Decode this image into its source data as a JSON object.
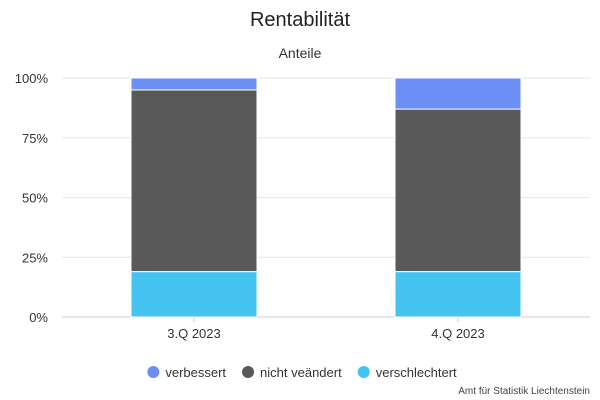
{
  "title": "Rentabilität",
  "subtitle": "Anteile",
  "credit": "Amt für Statistik Liechtenstein",
  "chart_data": {
    "type": "bar",
    "stacked": "percent",
    "categories": [
      "3.Q 2023",
      "4.Q 2023"
    ],
    "yticks": [
      "0%",
      "25%",
      "50%",
      "75%",
      "100%"
    ],
    "ylim": [
      0,
      100
    ],
    "grid": true,
    "legend_position": "bottom",
    "series": [
      {
        "name": "verbessert",
        "color": "#6b8ff5",
        "values": [
          5,
          13
        ]
      },
      {
        "name": "nicht veändert",
        "color": "#595959",
        "values": [
          76,
          68
        ]
      },
      {
        "name": "verschlechtert",
        "color": "#45c3f0",
        "values": [
          19,
          19
        ]
      }
    ]
  }
}
